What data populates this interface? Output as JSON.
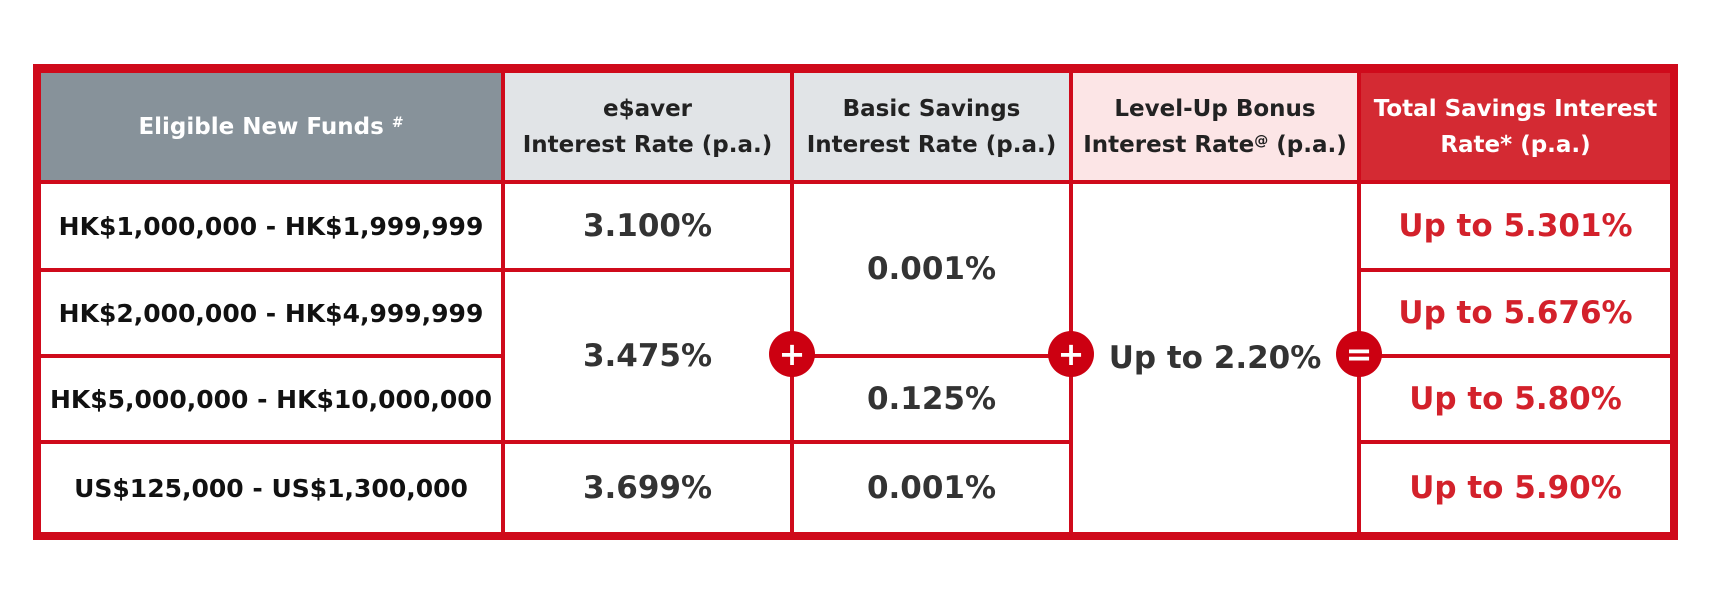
{
  "header": [
    {
      "line1": "Eligible New Funds",
      "sup": "#"
    },
    {
      "line1": "e$aver",
      "line2": "Interest Rate (p.a.)"
    },
    {
      "line1": "Basic Savings",
      "line2": "Interest Rate (p.a.)"
    },
    {
      "line1": "Level-Up Bonus",
      "line2": "Interest Rate",
      "sup": "@",
      "line2_end": "(p.a.)"
    },
    {
      "line1": "Total Savings Interest",
      "line2": "Rate* (p.a.)"
    }
  ],
  "tiers": [
    "HK$1,000,000 - HK$1,999,999",
    "HK$2,000,000 - HK$4,999,999",
    "HK$5,000,000 - HK$10,000,000",
    "US$125,000 - US$1,300,000"
  ],
  "esaver_rates": [
    "3.100%",
    "3.475%",
    "3.699%"
  ],
  "basic_rates": [
    "0.001%",
    "0.125%",
    "0.001%"
  ],
  "bonus_rate": "Up to 2.20%",
  "total_rates": [
    "Up to 5.301%",
    "Up to 5.676%",
    "Up to 5.80%",
    "Up to 5.90%"
  ],
  "operators": [
    "+",
    "+",
    "="
  ]
}
